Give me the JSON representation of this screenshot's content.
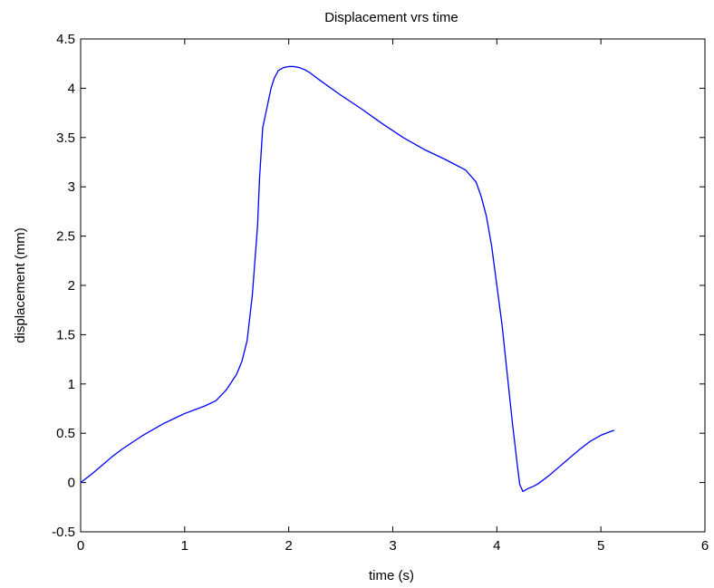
{
  "chart_data": {
    "type": "line",
    "title": "Displacement vrs time",
    "xlabel": "time (s)",
    "ylabel": "displacement (mm)",
    "xlim": [
      0,
      6
    ],
    "ylim": [
      -0.5,
      4.5
    ],
    "xticks": [
      "0",
      "1",
      "2",
      "3",
      "4",
      "5",
      "6"
    ],
    "yticks": [
      "-0.5",
      "0",
      "0.5",
      "1",
      "1.5",
      "2",
      "2.5",
      "3",
      "3.5",
      "4",
      "4.5"
    ],
    "grid": false,
    "legend": "none",
    "series": [
      {
        "color": "#0000ff",
        "x": [
          0,
          0.1,
          0.2,
          0.3,
          0.4,
          0.5,
          0.6,
          0.7,
          0.8,
          0.9,
          1.0,
          1.1,
          1.2,
          1.3,
          1.4,
          1.5,
          1.55,
          1.6,
          1.65,
          1.7,
          1.72,
          1.75,
          1.78,
          1.8,
          1.83,
          1.86,
          1.9,
          1.95,
          2.0,
          2.05,
          2.1,
          2.15,
          2.2,
          2.3,
          2.5,
          2.7,
          2.9,
          3.1,
          3.3,
          3.5,
          3.7,
          3.8,
          3.85,
          3.9,
          3.95,
          4.0,
          4.05,
          4.1,
          4.15,
          4.2,
          4.22,
          4.25,
          4.27,
          4.3,
          4.35,
          4.4,
          4.5,
          4.6,
          4.7,
          4.8,
          4.9,
          5.0,
          5.1,
          5.13
        ],
        "y": [
          0.0,
          0.08,
          0.17,
          0.26,
          0.34,
          0.41,
          0.48,
          0.54,
          0.6,
          0.65,
          0.7,
          0.74,
          0.78,
          0.83,
          0.94,
          1.1,
          1.23,
          1.44,
          1.9,
          2.6,
          3.1,
          3.6,
          3.75,
          3.85,
          4.0,
          4.1,
          4.18,
          4.21,
          4.22,
          4.22,
          4.21,
          4.19,
          4.16,
          4.08,
          3.93,
          3.79,
          3.64,
          3.5,
          3.38,
          3.28,
          3.17,
          3.05,
          2.9,
          2.7,
          2.4,
          2.0,
          1.6,
          1.1,
          0.6,
          0.15,
          -0.02,
          -0.09,
          -0.08,
          -0.06,
          -0.04,
          -0.01,
          0.07,
          0.16,
          0.25,
          0.34,
          0.42,
          0.48,
          0.52,
          0.53
        ]
      }
    ]
  }
}
